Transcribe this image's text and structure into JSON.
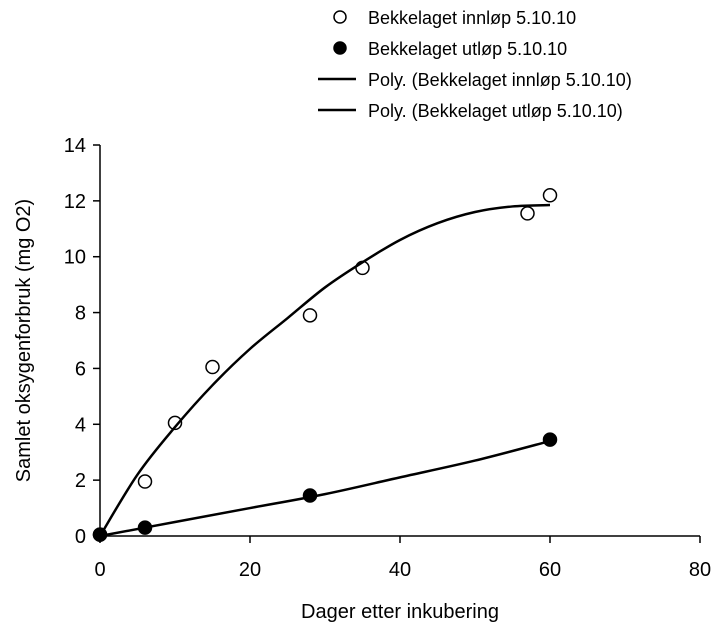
{
  "chart_data": {
    "type": "scatter",
    "title": "",
    "xlabel": "Dager etter inkubering",
    "ylabel": "Samlet oksygenforbruk (mg O2)",
    "xlim": [
      0,
      80
    ],
    "ylim": [
      0,
      14
    ],
    "x_ticks": [
      0,
      20,
      40,
      60,
      80
    ],
    "y_ticks": [
      0,
      2,
      4,
      6,
      8,
      10,
      12,
      14
    ],
    "grid": false,
    "legend_position": "top-right",
    "series": [
      {
        "name": "Bekkelaget innløp 5.10.10",
        "kind": "points",
        "marker": "open-circle",
        "x": [
          0,
          6,
          10,
          15,
          28,
          35,
          57,
          60
        ],
        "y": [
          0.05,
          1.95,
          4.05,
          6.05,
          7.9,
          9.6,
          11.55,
          12.2
        ]
      },
      {
        "name": "Bekkelaget utløp 5.10.10",
        "kind": "points",
        "marker": "filled-circle",
        "x": [
          0,
          6,
          28,
          60
        ],
        "y": [
          0.05,
          0.3,
          1.45,
          3.45
        ]
      },
      {
        "name": "Poly. (Bekkelaget innløp 5.10.10)",
        "kind": "trendline",
        "x": [
          0,
          5,
          10,
          15,
          20,
          25,
          30,
          35,
          40,
          45,
          50,
          55,
          60
        ],
        "y": [
          0,
          2.2,
          3.9,
          5.4,
          6.7,
          7.8,
          8.9,
          9.8,
          10.6,
          11.2,
          11.6,
          11.8,
          11.85
        ]
      },
      {
        "name": "Poly. (Bekkelaget utløp 5.10.10)",
        "kind": "trendline",
        "x": [
          0,
          10,
          20,
          30,
          40,
          50,
          60
        ],
        "y": [
          0,
          0.5,
          1.0,
          1.5,
          2.1,
          2.7,
          3.4
        ]
      }
    ],
    "colors": {
      "axis": "#000000",
      "marker": "#000000",
      "background": "#ffffff"
    }
  }
}
